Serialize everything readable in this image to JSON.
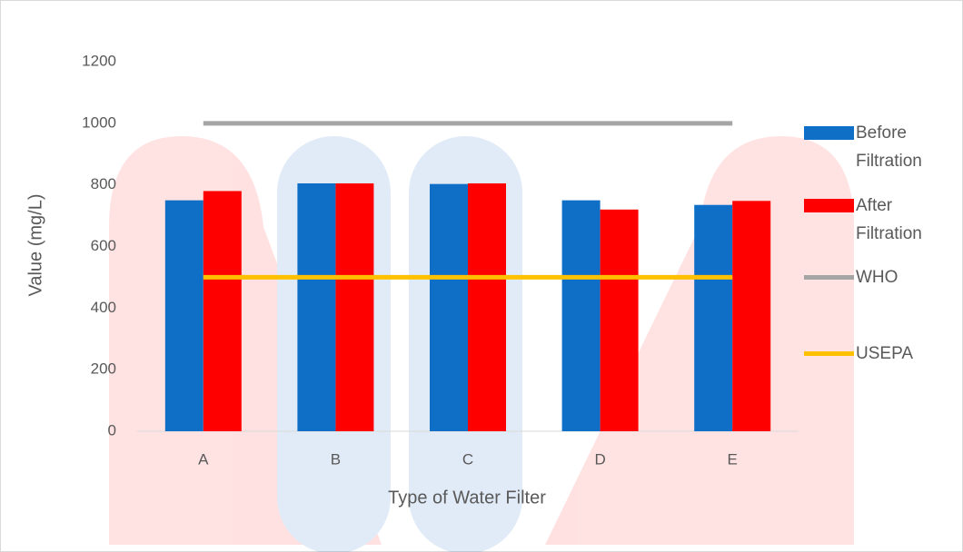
{
  "chart_data": {
    "type": "bar",
    "x_label": "Type of Water Filter",
    "y_label": "Value (mg/L)",
    "categories": [
      "A",
      "B",
      "C",
      "D",
      "E"
    ],
    "series": [
      {
        "name": "Before Filtration",
        "type": "bar",
        "color": "#0f6fc6",
        "values": [
          750,
          805,
          803,
          750,
          735
        ]
      },
      {
        "name": "After Filtration",
        "type": "bar",
        "color": "#ff0000",
        "values": [
          780,
          805,
          805,
          720,
          748
        ]
      },
      {
        "name": "WHO",
        "type": "line",
        "color": "#a5a5a5",
        "values": [
          1000,
          1000,
          1000,
          1000,
          1000
        ]
      },
      {
        "name": "USEPA",
        "type": "line",
        "color": "#ffc000",
        "values": [
          500,
          500,
          500,
          500,
          500
        ]
      }
    ],
    "ylim": [
      0,
      1200
    ],
    "yticks": [
      0,
      200,
      400,
      600,
      800,
      1000,
      1200
    ],
    "grid": false,
    "legend": "right"
  }
}
